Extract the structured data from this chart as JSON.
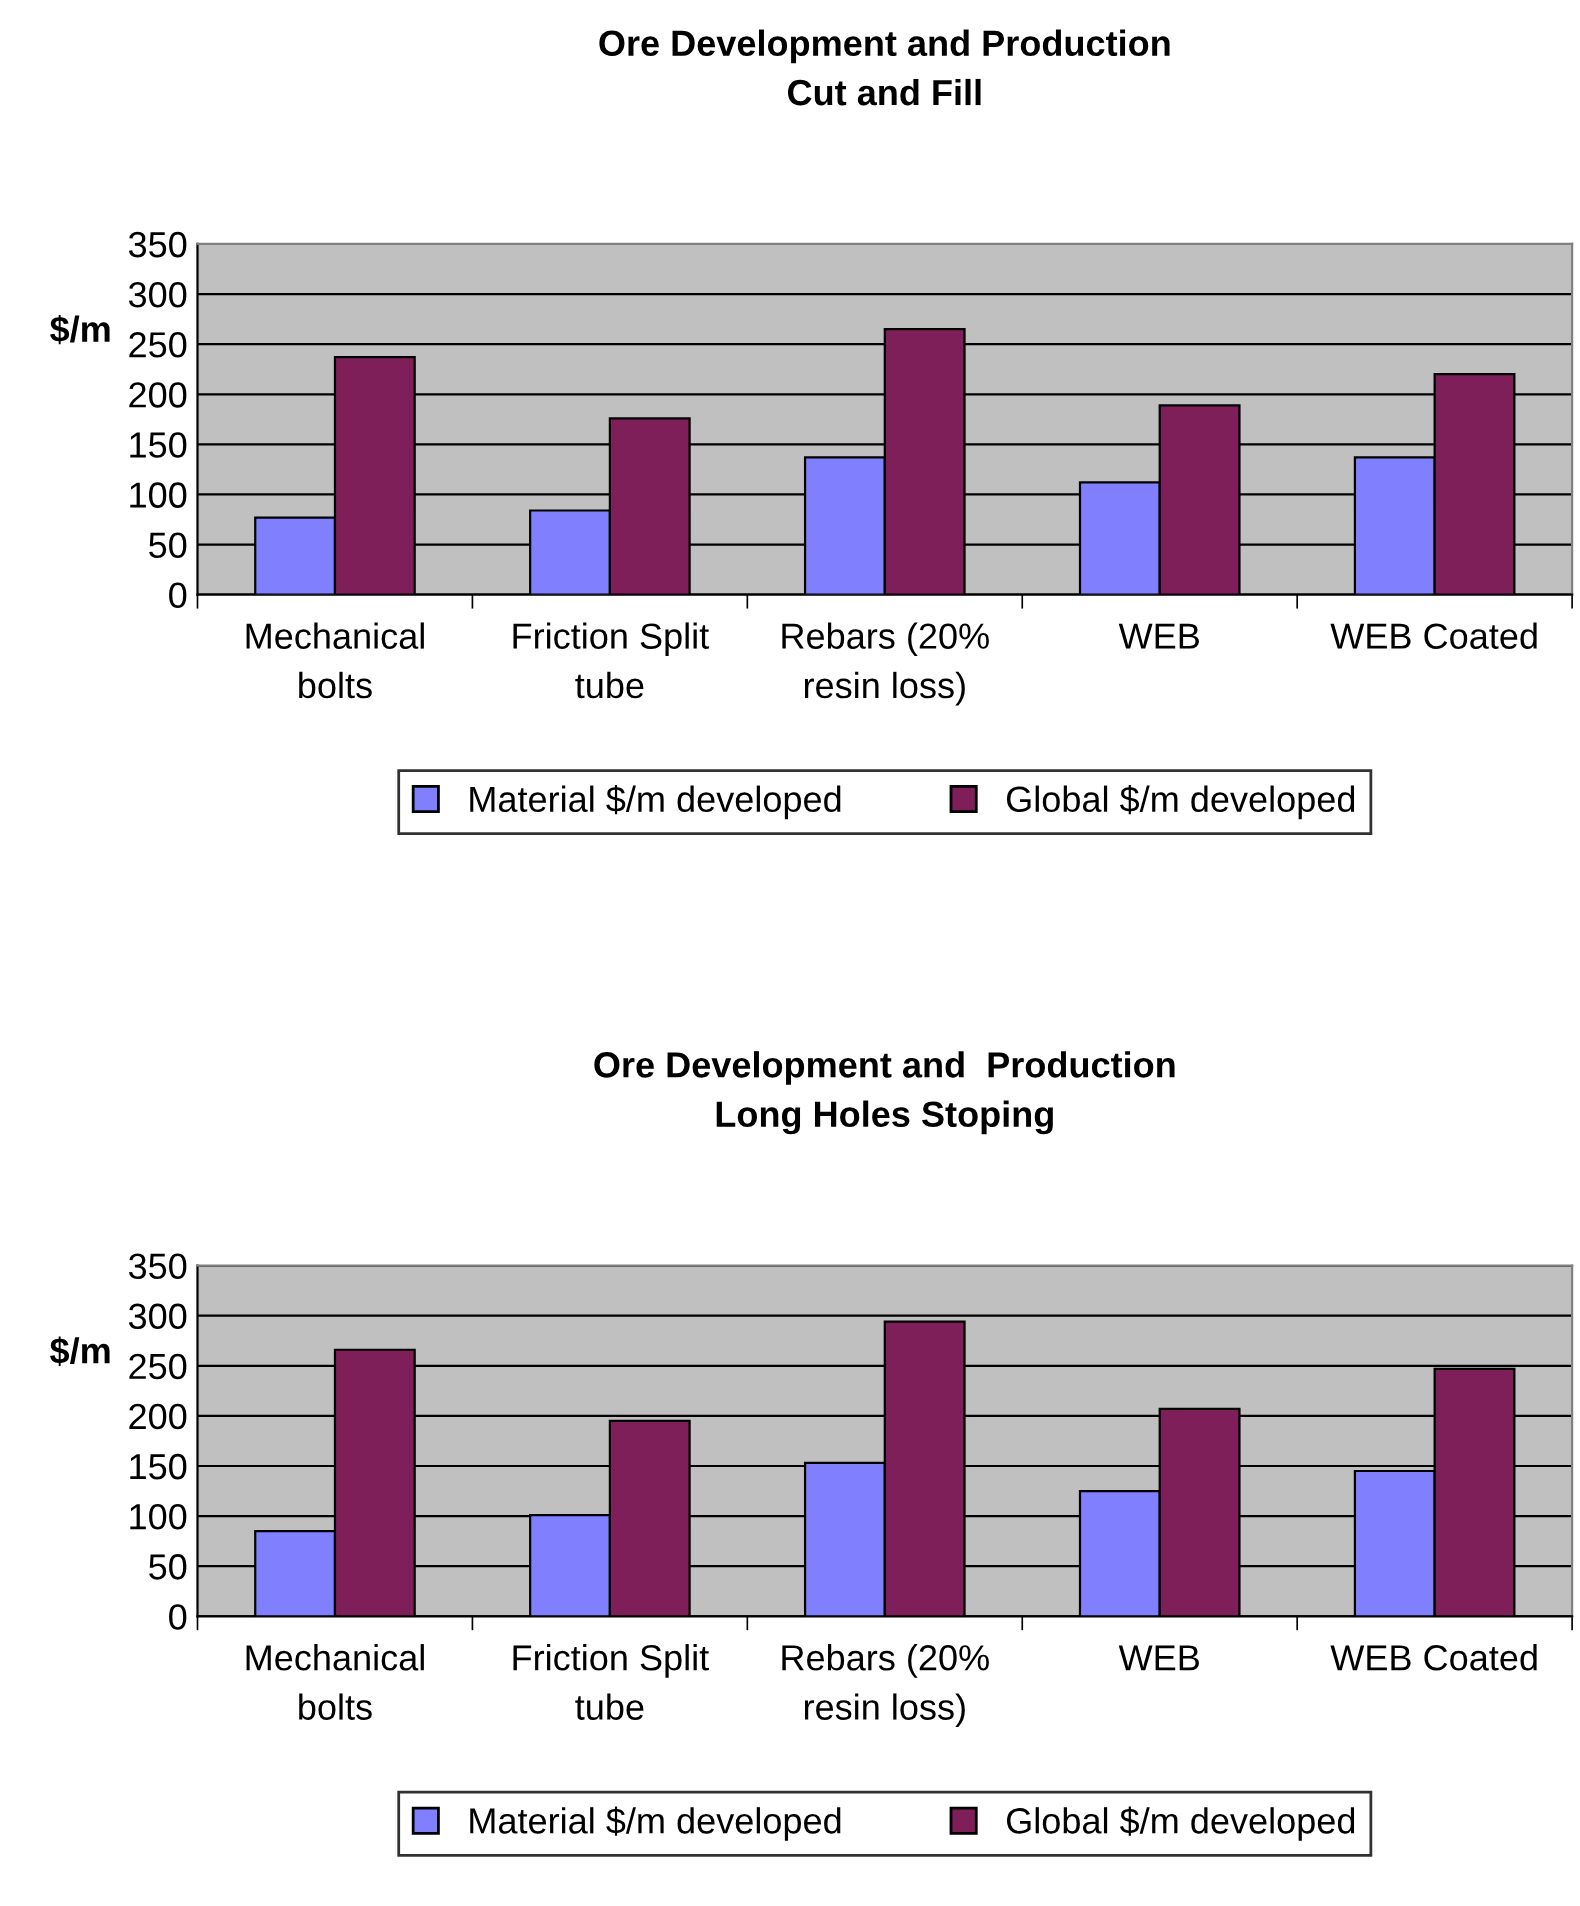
{
  "chart_data": [
    {
      "type": "bar",
      "title": "Ore Development and Production\nCut and Fill",
      "ylabel": "$/m",
      "categories": [
        "Mechanical\nbolts",
        "Friction Split\ntube",
        "Rebars (20%\nresin loss)",
        "WEB",
        "WEB Coated"
      ],
      "series": [
        {
          "name": "Material $/m developed",
          "color": "#8080ff",
          "values": [
            77,
            84,
            137,
            112,
            137
          ]
        },
        {
          "name": "Global $/m developed",
          "color": "#7f1f5a",
          "values": [
            237,
            176,
            265,
            189,
            220
          ]
        }
      ],
      "ylim": [
        0,
        350
      ],
      "yticks": [
        0,
        50,
        100,
        150,
        200,
        250,
        300,
        350
      ],
      "grid": "y",
      "legend": "bottom"
    },
    {
      "type": "bar",
      "title": "Ore Development and  Production\nLong Holes Stoping",
      "ylabel": "$/m",
      "categories": [
        "Mechanical\nbolts",
        "Friction Split\ntube",
        "Rebars (20%\nresin loss)",
        "WEB",
        "WEB Coated"
      ],
      "series": [
        {
          "name": "Material $/m developed",
          "color": "#8080ff",
          "values": [
            85,
            101,
            153,
            125,
            145
          ]
        },
        {
          "name": "Global $/m developed",
          "color": "#7f1f5a",
          "values": [
            266,
            195,
            294,
            207,
            247
          ]
        }
      ],
      "ylim": [
        0,
        350
      ],
      "yticks": [
        0,
        50,
        100,
        150,
        200,
        250,
        300,
        350
      ],
      "grid": "y",
      "legend": "bottom"
    }
  ]
}
